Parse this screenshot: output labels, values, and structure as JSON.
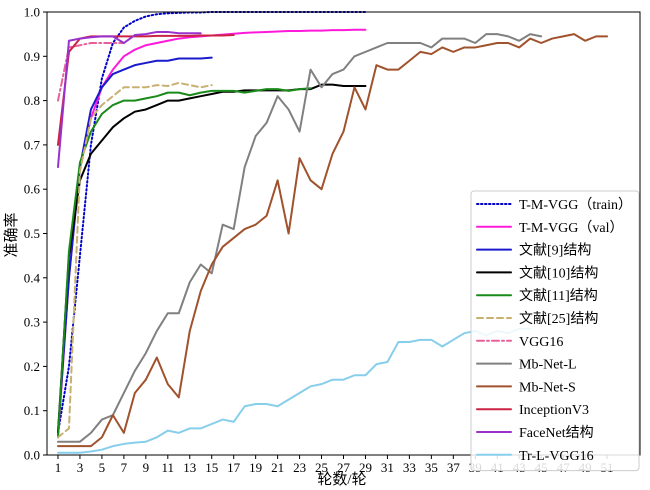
{
  "chart_data": {
    "type": "line",
    "xlabel": "轮数/轮",
    "ylabel": "准确率",
    "xlim": [
      0,
      54
    ],
    "ylim": [
      0,
      1.0
    ],
    "x_ticks": [
      1,
      3,
      5,
      7,
      9,
      11,
      13,
      15,
      17,
      19,
      21,
      23,
      25,
      27,
      29,
      31,
      33,
      35,
      37,
      39,
      41,
      43,
      45,
      47,
      49,
      51
    ],
    "y_ticks": [
      0.0,
      0.1,
      0.2,
      0.3,
      0.4,
      0.5,
      0.6,
      0.7,
      0.8,
      0.9,
      1.0
    ],
    "grid": false,
    "legend_position": "bottom-right",
    "series": [
      {
        "name": "T-M-VGG（train）",
        "color": "#0000cc",
        "dash": "dotted",
        "x": [
          1,
          2,
          3,
          4,
          5,
          6,
          7,
          8,
          9,
          10,
          11,
          12,
          13,
          14,
          15,
          16,
          17,
          18,
          19,
          20,
          21,
          22,
          23,
          24,
          25,
          26,
          27,
          28,
          29
        ],
        "y": [
          0.05,
          0.2,
          0.45,
          0.7,
          0.85,
          0.93,
          0.965,
          0.98,
          0.99,
          0.995,
          0.997,
          0.998,
          0.999,
          0.999,
          1.0,
          1.0,
          1.0,
          1.0,
          1.0,
          1.0,
          1.0,
          1.0,
          1.0,
          1.0,
          1.0,
          1.0,
          1.0,
          1.0,
          1.0
        ]
      },
      {
        "name": "T-M-VGG（val）",
        "color": "#ff1adb",
        "dash": "solid",
        "x": [
          1,
          2,
          3,
          4,
          5,
          6,
          7,
          8,
          9,
          10,
          11,
          12,
          13,
          14,
          15,
          16,
          17,
          18,
          19,
          20,
          21,
          22,
          23,
          24,
          25,
          26,
          27,
          28,
          29
        ],
        "y": [
          0.04,
          0.4,
          0.65,
          0.76,
          0.83,
          0.87,
          0.9,
          0.915,
          0.925,
          0.93,
          0.935,
          0.94,
          0.943,
          0.945,
          0.947,
          0.949,
          0.951,
          0.953,
          0.954,
          0.955,
          0.956,
          0.957,
          0.957,
          0.958,
          0.958,
          0.959,
          0.959,
          0.96,
          0.96
        ]
      },
      {
        "name": "文献[9]结构",
        "color": "#1a1acc",
        "dash": "solid",
        "x": [
          1,
          2,
          3,
          4,
          5,
          6,
          7,
          8,
          9,
          10,
          11,
          12,
          13,
          14,
          15
        ],
        "y": [
          0.05,
          0.4,
          0.65,
          0.78,
          0.83,
          0.86,
          0.87,
          0.88,
          0.885,
          0.89,
          0.89,
          0.895,
          0.895,
          0.895,
          0.897
        ]
      },
      {
        "name": "文献[10]结构",
        "color": "#000000",
        "dash": "solid",
        "x": [
          1,
          2,
          3,
          4,
          5,
          6,
          7,
          8,
          9,
          10,
          11,
          12,
          13,
          14,
          15,
          16,
          17,
          18,
          19,
          20,
          21,
          22,
          23,
          24,
          25,
          26,
          27,
          28,
          29
        ],
        "y": [
          0.05,
          0.45,
          0.62,
          0.68,
          0.71,
          0.74,
          0.76,
          0.775,
          0.78,
          0.79,
          0.8,
          0.8,
          0.805,
          0.81,
          0.815,
          0.82,
          0.82,
          0.823,
          0.823,
          0.823,
          0.823,
          0.823,
          0.826,
          0.826,
          0.836,
          0.836,
          0.833,
          0.833,
          0.833
        ]
      },
      {
        "name": "文献[11]结构",
        "color": "#1a8a1a",
        "dash": "solid",
        "x": [
          1,
          2,
          3,
          4,
          5,
          6,
          7,
          8,
          9,
          10,
          11,
          12,
          13,
          14,
          15,
          16,
          17,
          18,
          19,
          20,
          21,
          22,
          23,
          24
        ],
        "y": [
          0.04,
          0.46,
          0.66,
          0.73,
          0.77,
          0.79,
          0.8,
          0.8,
          0.805,
          0.81,
          0.818,
          0.818,
          0.812,
          0.818,
          0.822,
          0.822,
          0.822,
          0.818,
          0.822,
          0.826,
          0.826,
          0.822,
          0.826,
          0.828
        ]
      },
      {
        "name": "文献[25]结构",
        "color": "#c8b070",
        "dash": "dashed",
        "x": [
          1,
          2,
          3,
          4,
          5,
          6,
          7,
          8,
          9,
          10,
          11,
          12,
          13,
          14,
          15
        ],
        "y": [
          0.04,
          0.06,
          0.64,
          0.76,
          0.79,
          0.81,
          0.83,
          0.83,
          0.83,
          0.835,
          0.833,
          0.84,
          0.835,
          0.83,
          0.835
        ]
      },
      {
        "name": "VGG16",
        "color": "#e8609a",
        "dash": "dashdot",
        "x": [
          1,
          2,
          3,
          4,
          5,
          6,
          7
        ],
        "y": [
          0.8,
          0.92,
          0.925,
          0.93,
          0.93,
          0.93,
          0.93
        ]
      },
      {
        "name": "Mb-Net-L",
        "color": "#808080",
        "dash": "solid",
        "x": [
          1,
          2,
          3,
          4,
          5,
          6,
          7,
          8,
          9,
          10,
          11,
          12,
          13,
          14,
          15,
          16,
          17,
          18,
          19,
          20,
          21,
          22,
          23,
          24,
          25,
          26,
          27,
          28,
          29,
          30,
          31,
          32,
          33,
          34,
          35,
          36,
          37,
          38,
          39,
          40,
          41,
          42,
          43,
          44,
          45
        ],
        "y": [
          0.03,
          0.03,
          0.03,
          0.05,
          0.08,
          0.09,
          0.14,
          0.19,
          0.23,
          0.28,
          0.32,
          0.32,
          0.39,
          0.43,
          0.41,
          0.52,
          0.51,
          0.65,
          0.72,
          0.75,
          0.81,
          0.78,
          0.73,
          0.87,
          0.83,
          0.86,
          0.87,
          0.9,
          0.91,
          0.92,
          0.93,
          0.93,
          0.93,
          0.93,
          0.92,
          0.94,
          0.94,
          0.94,
          0.93,
          0.95,
          0.95,
          0.945,
          0.935,
          0.95,
          0.945
        ]
      },
      {
        "name": "Mb-Net-S",
        "color": "#a0522d",
        "dash": "solid",
        "x": [
          1,
          2,
          3,
          4,
          5,
          6,
          7,
          8,
          9,
          10,
          11,
          12,
          13,
          14,
          15,
          16,
          17,
          18,
          19,
          20,
          21,
          22,
          23,
          24,
          25,
          26,
          27,
          28,
          29,
          30,
          31,
          32,
          33,
          34,
          35,
          36,
          37,
          38,
          39,
          40,
          41,
          42,
          43,
          44,
          45,
          46,
          47,
          48,
          49,
          50,
          51
        ],
        "y": [
          0.02,
          0.02,
          0.02,
          0.02,
          0.04,
          0.09,
          0.05,
          0.14,
          0.17,
          0.22,
          0.16,
          0.13,
          0.28,
          0.37,
          0.43,
          0.47,
          0.49,
          0.51,
          0.52,
          0.54,
          0.62,
          0.5,
          0.67,
          0.62,
          0.6,
          0.68,
          0.73,
          0.83,
          0.78,
          0.88,
          0.87,
          0.87,
          0.89,
          0.91,
          0.905,
          0.92,
          0.91,
          0.92,
          0.92,
          0.925,
          0.93,
          0.93,
          0.92,
          0.94,
          0.93,
          0.94,
          0.945,
          0.95,
          0.935,
          0.945,
          0.945
        ]
      },
      {
        "name": "InceptionV3",
        "color": "#cc2244",
        "dash": "solid",
        "x": [
          1,
          2,
          3,
          4,
          5,
          6,
          7,
          8,
          9,
          10,
          11,
          12,
          13,
          14,
          15,
          16,
          17
        ],
        "y": [
          0.7,
          0.91,
          0.94,
          0.945,
          0.945,
          0.945,
          0.945,
          0.945,
          0.945,
          0.946,
          0.946,
          0.946,
          0.946,
          0.947,
          0.947,
          0.947,
          0.948
        ]
      },
      {
        "name": "FaceNet结构",
        "color": "#9932cc",
        "dash": "solid",
        "x": [
          1,
          2,
          3,
          4,
          5,
          6,
          7,
          8,
          9,
          10,
          11,
          12,
          13,
          14
        ],
        "y": [
          0.65,
          0.935,
          0.94,
          0.943,
          0.945,
          0.945,
          0.93,
          0.948,
          0.95,
          0.955,
          0.955,
          0.952,
          0.952,
          0.952
        ]
      },
      {
        "name": "Tr-L-VGG16",
        "color": "#87ceeb",
        "dash": "solid",
        "x": [
          1,
          2,
          3,
          4,
          5,
          6,
          7,
          8,
          9,
          10,
          11,
          12,
          13,
          14,
          15,
          16,
          17,
          18,
          19,
          20,
          21,
          22,
          23,
          24,
          25,
          26,
          27,
          28,
          29,
          30,
          31,
          32,
          33,
          34,
          35,
          36,
          37,
          38,
          39,
          40,
          41,
          42,
          43,
          44
        ],
        "y": [
          0.005,
          0.005,
          0.005,
          0.008,
          0.012,
          0.02,
          0.025,
          0.028,
          0.03,
          0.04,
          0.055,
          0.05,
          0.06,
          0.06,
          0.07,
          0.08,
          0.075,
          0.11,
          0.115,
          0.115,
          0.11,
          0.125,
          0.14,
          0.155,
          0.16,
          0.17,
          0.17,
          0.18,
          0.18,
          0.205,
          0.21,
          0.255,
          0.255,
          0.26,
          0.26,
          0.245,
          0.26,
          0.275,
          0.28,
          0.27,
          0.28,
          0.275,
          0.285,
          0.285
        ]
      }
    ]
  }
}
